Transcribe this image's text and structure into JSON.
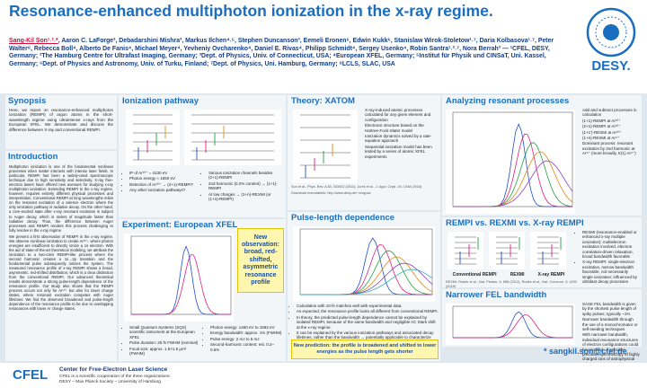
{
  "header": {
    "title": "Resonance-enhanced multiphoton ionization in the x-ray regime.",
    "first_author": "Sang-Kil Son¹˒²˒*",
    "authors": ", Aaron C. LaForge³, Debadarshini Mishra³, Markus Ilchen⁴˒⁵, Stephen Duncanson³, Eemeli Eronen⁶, Edwin Kukk⁶, Stanislaw Wirok-Stoletow¹˒⁷, Daria Kolbasova¹˒⁷, Peter Walter⁸, Rebecca Boll⁴, Alberto De Fanis⁴, Michael Meyer⁴, Yevheniy Ovcharenko⁴, Daniel E. Rivas⁴, Philipp Schmidt⁴, Sergey Usenko⁴, Robin Santra¹˒²˒⁷, Nora Berrah³",
    "affiliations": " — ¹CFEL, DESY, Germany; ²The Hamburg Centre for Ultrafast Imaging, Germany; ³Dept. of Physics, Univ. of Connecticut, USA; ⁴European XFEL, Germany; ⁵Institut für Physik und CINSaT, Uni. Kassel, Germany; ⁶Dept. of Physics and Astronomy, Univ. of Turku, Finland; ⁷Dept. of Physics, Uni. Hamburg, Germany; ⁸LCLS, SLAC, USA",
    "logo": "DESY."
  },
  "sections": [
    {
      "title": "Synopsis",
      "paragraphs": [
        "Here, we report on resonance-enhanced multiphoton ionization (REMPI) of argon atoms in the short-wavelength regime using ultraintense x-rays from the European XFEL. We demonstrate and discuss the difference between X-ray and conventional REMPI."
      ]
    },
    {
      "title": "Introduction",
      "paragraphs": [
        "Multiphoton ionization is one of the fundamental nonlinear processes when matter interacts with intense laser fields. In particular, REMPI has been a widely-used spectroscopic technique due to high sensitivity and selectivity. X-ray free-electron lasers have offered new avenues for studying x-ray multiphoton ionization. Extending REMPI to the x-ray regime, however, requires entirely different physical processes and interpretation. Conventional REMPI at long wavelengths relies on the resonant excitation of a valence electron where the only ionization pathway is radiative decay. On the other hand, a core-excited state after x-ray resonant excitation is subject to Auger decay, which is orders of magnitude faster than radiative decay. Thus, the difference between Auger processes and REMPI renders this process challenging to fully resolve in the x-ray regime.",
        "We present a first observation of REMPI in the x-ray regime. We observe nonlinear ionization to create Ar¹⁰⁺, where photon energies are insufficient to directly ionize a 1s electron. With the aid of state-of-the-art theoretical modeling, we attribute the ionization to a two-color REMPI-like process where the second harmonic creates a 1s→2p transition and the fundamental pulse subsequently ionizes the system. The measured resonance profile of x-ray REMPI shows a broad, asymmetric, red-shifted distribution, which is a clear distinction from the conventional REMPI. Our advanced theoretical results demonstrate a strong pulse-length dependence of the resonance profile. Our study also shows that the REMPI process occurs not only for Ar¹⁰⁺ but also for lower charge states, where resonant excitation competes with Auger lifetimes. We find the observed broadened and pulse-length dependence of the resonance profile to be due to overlapping resonances with lower Ar charge states."
      ]
    },
    {
      "title": "Ionization pathway",
      "bullets": [
        "IP of Ar¹⁰⁺ = 4130 eV",
        "Photon energy ≈ 1550 eV",
        "Detection of Ar¹⁰⁺ → (2+1)-REMPI?",
        "Any other ionization pathways?"
      ],
      "bullets2": [
        "Various ionization channels besides (2+1)-REMPI",
        "2nd harmonic (0.2% content) → (1+1)-REMPI",
        "At low charges → (1+n)-REXMI (or (1+n)-REMPI)"
      ]
    },
    {
      "title": "Experiment: European XFEL",
      "bullets": [
        "Small Quantum Systems (SQS) scientific instrument at the European XFEL",
        "Pulse duration: 25 fs FWHM (nominal)",
        "Focal size: approx. 1.5×1.5 μm² (FWHM)"
      ],
      "bullets2": [
        "Photon energy: 1460 eV to 1593 eV",
        "Energy bandwidth: approx. 1% (FWHM)",
        "Pulse energy: 2 mJ to 6 mJ",
        "Second-harmonic content: est. 0.2–0.6%"
      ],
      "callout": "New observation: broad, red-shifted, asymmetric resonance profile"
    },
    {
      "title": "Theory: XATOM",
      "bullets": [
        "X-ray-induced atomic processes calculated for any given element and configuration",
        "Electronic structure based on the Hartree-Fock-Slater model",
        "Ionization dynamics solved by a rate-equation approach",
        "Sequential ionization model has been tested by a series of atomic XFEL experiments"
      ],
      "refs": [
        "Son et al., Phys. Rev. A 83, 033402 (2011); Jurek et al., J. Appl. Cryst. 49, 1048 (2016)",
        "Download executables: http://www.desy.de/~xraypac"
      ]
    },
    {
      "title": "Pulse-length dependence",
      "bullets": [
        "Calculation with 10-fs matches well with experimental data.",
        "As expected, the resonance profile looks all different from conventional REMPI.",
        "In theory, the predicted pulse-length dependence cannot be explained by isolated REMPI, because of the same bandwidth and negligible AC Stark shift at the x-ray regime.",
        "It can be explained by the various ionization pathways and associated decay lifetimes, rather than the bandwidth → potentially applicable to characterize FEL beam parameters."
      ],
      "callout": "New prediction: the profile is broadened and shifted to lower energies as the pulse length gets shorter"
    },
    {
      "title": "Analyzing resonant processes",
      "bullets": [
        "Add and subtract processes in calculation",
        "(1+1)-REMPI at Ar¹⁰⁺",
        "(2+1)-REMPI at Ar¹⁰⁺",
        "(1+1')-REXMI at Ar¹⁰⁺",
        "(1+n)-REXMI at Ar⁹⁺",
        "Dominant process: resonant excitation by 2nd harmonic at Ar⁹⁺ (more broadly, K(1) Ar⁹⁺)"
      ]
    },
    {
      "title": "REMPI vs. REXMI vs. X-ray REMPI",
      "labels": [
        "Conventional REMPI",
        "REXMI",
        "X-ray REMPI"
      ],
      "bullets": [
        "REXMI (resonance-enabled or enhanced x-ray multiple ionization): multielectron excitation involved, electron correlation-driven relaxation, broad bandwidth favorable",
        "X-ray REMPI: single-electron excitation, narrow bandwidth favorable, not necessarily single ionization; influenced by ultrafast decay processes"
      ],
      "refs": [
        "REXMI: Rudek et al., Nat. Photon. 6, 858 (2012); Rudek et al., Nat. Commun. 9, 4200 (2018)"
      ]
    },
    {
      "title": "Narrower FEL bandwidth",
      "bullets": [
        "SASE FEL bandwidth is given by the shortest pulse length of spiky pulses; typically ~1%",
        "Narrower bandwidth through the use of a monochromator or self-seeding techniques",
        "With narrower bandwidth, individual resonance structures of electron configurations could be resolved → sensitive precision spectroscopy of highly charged ions of astrophysical relevance"
      ]
    }
  ],
  "email": "* sangkil.son@cfel.de",
  "footer": {
    "logo": "CFEL",
    "name": "Center for Free-Electron Laser Science",
    "line1": "CFEL is a scientific cooperation of the three organizations:",
    "line2": "DESY – Max Planck Society – University of Hamburg"
  }
}
